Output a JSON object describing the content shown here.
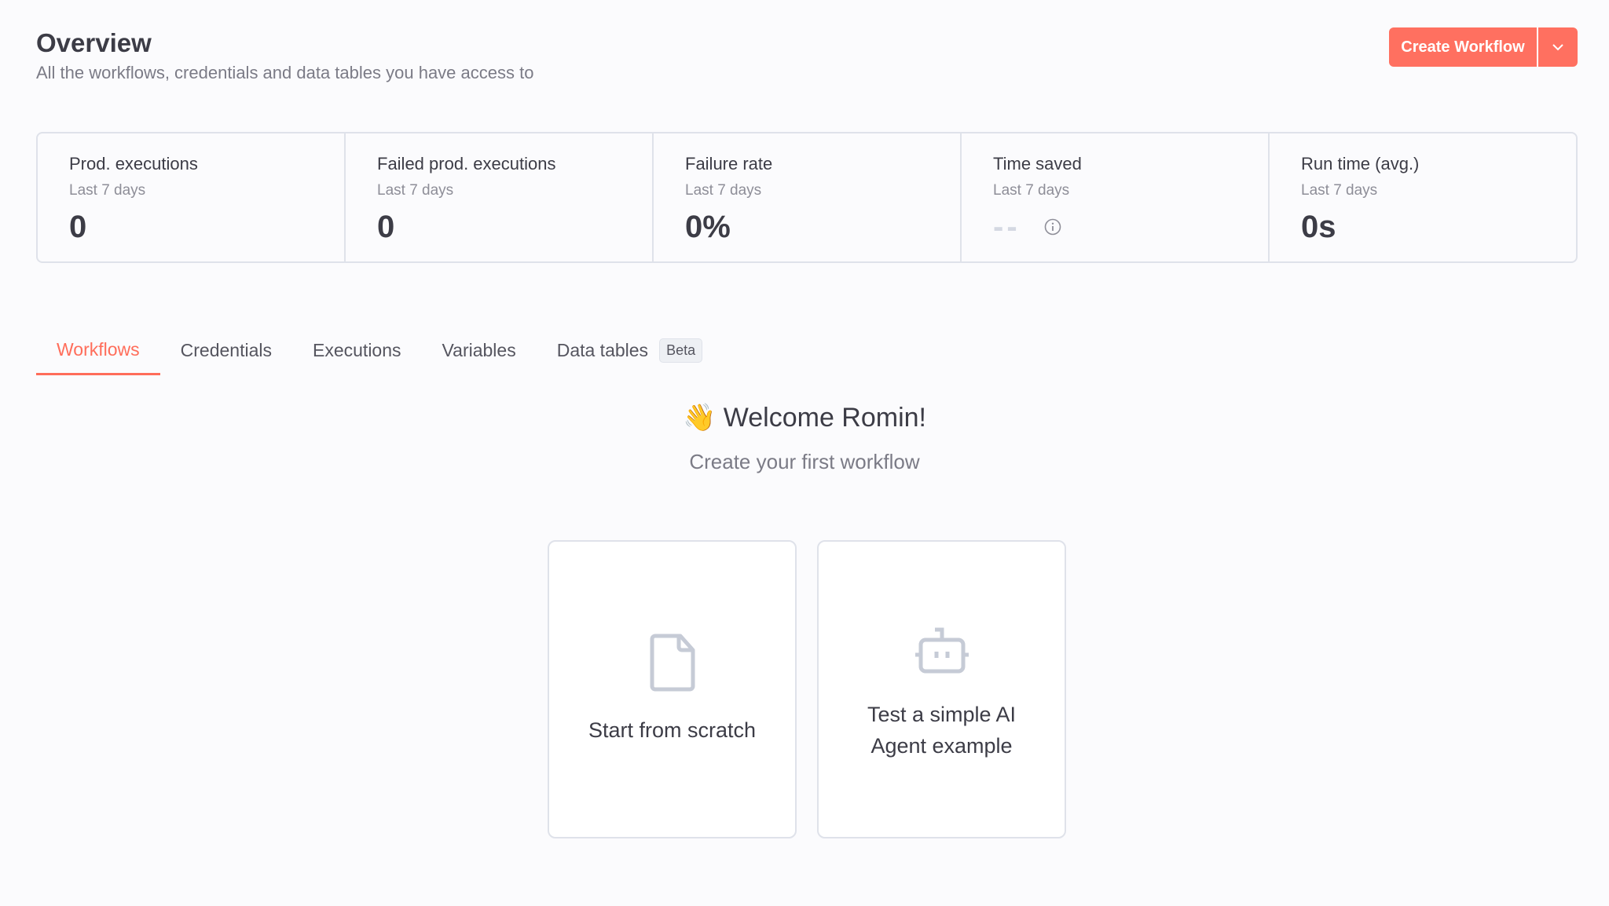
{
  "header": {
    "title": "Overview",
    "subtitle": "All the workflows, credentials and data tables you have access to",
    "create_label": "Create Workflow"
  },
  "stats": [
    {
      "label": "Prod. executions",
      "period": "Last 7 days",
      "value": "0"
    },
    {
      "label": "Failed prod. executions",
      "period": "Last 7 days",
      "value": "0"
    },
    {
      "label": "Failure rate",
      "period": "Last 7 days",
      "value": "0%"
    },
    {
      "label": "Time saved",
      "period": "Last 7 days",
      "value": "--"
    },
    {
      "label": "Run time (avg.)",
      "period": "Last 7 days",
      "value": "0s"
    }
  ],
  "tabs": [
    {
      "label": "Workflows",
      "active": true
    },
    {
      "label": "Credentials"
    },
    {
      "label": "Executions"
    },
    {
      "label": "Variables"
    },
    {
      "label": "Data tables",
      "badge": "Beta"
    }
  ],
  "welcome": {
    "emoji": "👋",
    "title": "Welcome Romin!",
    "subtitle": "Create your first workflow"
  },
  "cards": [
    {
      "label": "Start from scratch",
      "icon": "file-icon"
    },
    {
      "label": "Test a simple AI Agent example",
      "icon": "robot-icon"
    }
  ],
  "colors": {
    "accent": "#ff6d5a"
  }
}
